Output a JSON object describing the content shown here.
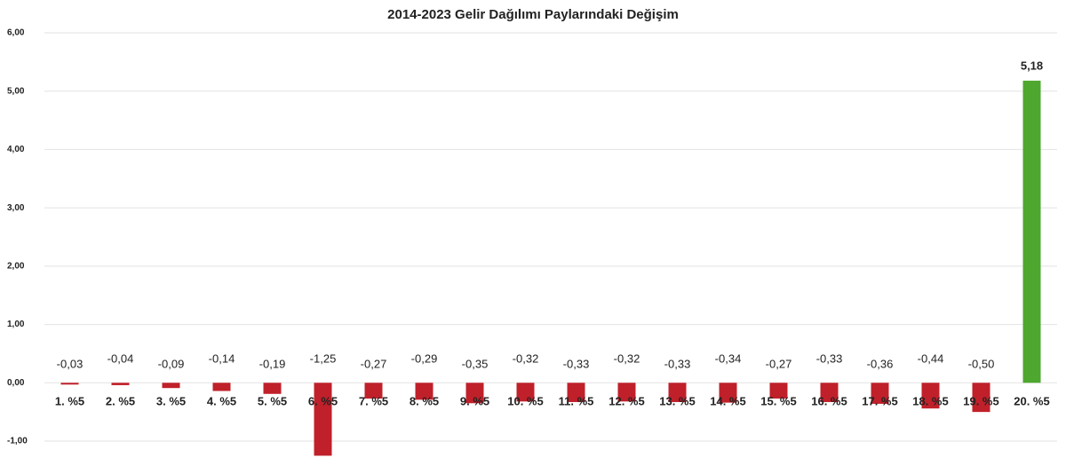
{
  "chart_data": {
    "type": "bar",
    "title": "2014-2023 Gelir Dağılımı Paylarındaki Değişim",
    "categories": [
      "1. %5",
      "2. %5",
      "3. %5",
      "4. %5",
      "5. %5",
      "6. %5",
      "7. %5",
      "8. %5",
      "9. %5",
      "10. %5",
      "11. %5",
      "12. %5",
      "13. %5",
      "14. %5",
      "15. %5",
      "16. %5",
      "17. %5",
      "18. %5",
      "19. %5",
      "20. %5"
    ],
    "values": [
      -0.03,
      -0.04,
      -0.09,
      -0.14,
      -0.19,
      -1.25,
      -0.27,
      -0.29,
      -0.35,
      -0.32,
      -0.33,
      -0.32,
      -0.33,
      -0.34,
      -0.27,
      -0.33,
      -0.36,
      -0.44,
      -0.5,
      5.18
    ],
    "value_labels": [
      "-0,03",
      "-0,04",
      "-0,09",
      "-0,14",
      "-0,19",
      "-1,25",
      "-0,27",
      "-0,29",
      "-0,35",
      "-0,32",
      "-0,33",
      "-0,32",
      "-0,33",
      "-0,34",
      "-0,27",
      "-0,33",
      "-0,36",
      "-0,44",
      "-0,50",
      "5,18"
    ],
    "colors": [
      "#c0202a",
      "#c0202a",
      "#c0202a",
      "#c0202a",
      "#c0202a",
      "#c0202a",
      "#c0202a",
      "#c0202a",
      "#c0202a",
      "#c0202a",
      "#c0202a",
      "#c0202a",
      "#c0202a",
      "#c0202a",
      "#c0202a",
      "#c0202a",
      "#c0202a",
      "#c0202a",
      "#c0202a",
      "#4ea72e"
    ],
    "ylim": [
      -1,
      6
    ],
    "yticks": [
      {
        "value": -1,
        "label": "-1,00"
      },
      {
        "value": 0,
        "label": "0,00"
      },
      {
        "value": 1,
        "label": "1,00"
      },
      {
        "value": 2,
        "label": "2,00"
      },
      {
        "value": 3,
        "label": "3,00"
      },
      {
        "value": 4,
        "label": "4,00"
      },
      {
        "value": 5,
        "label": "5,00"
      },
      {
        "value": 6,
        "label": "6,00"
      }
    ],
    "grid": true
  }
}
